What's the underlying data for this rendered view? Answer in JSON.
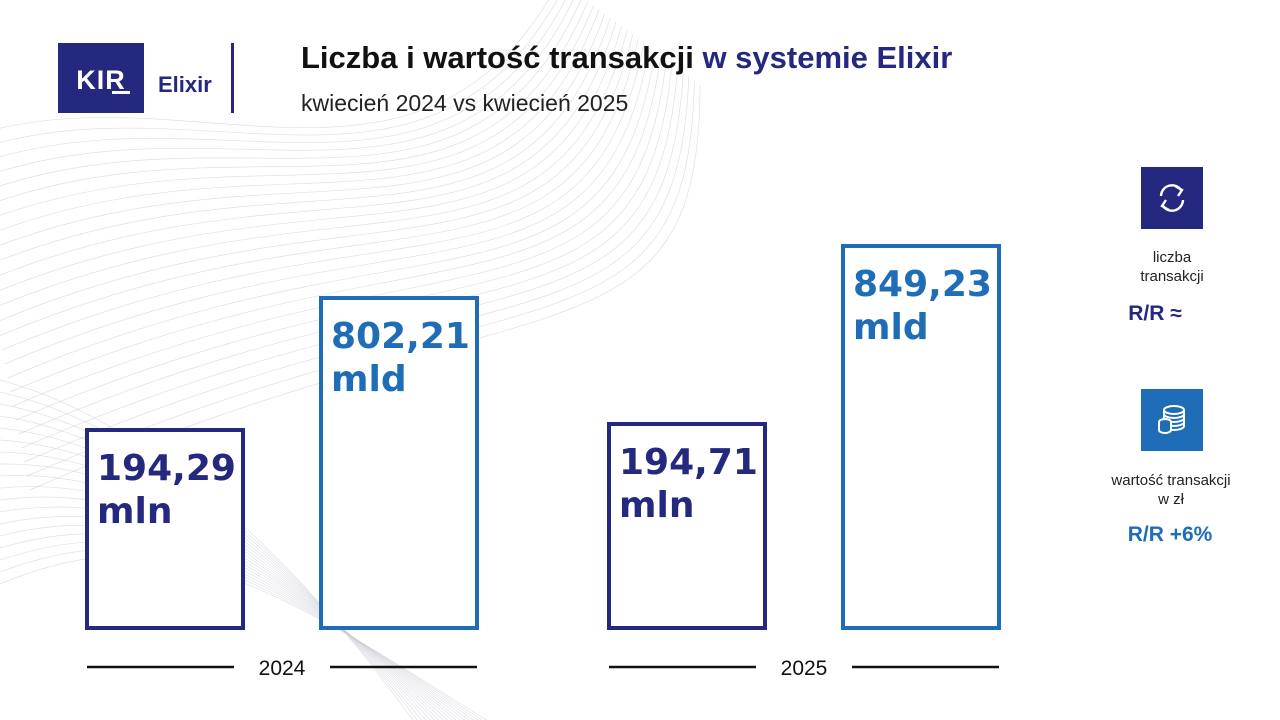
{
  "brand": {
    "logo_text": "KIR",
    "product_name": "Elixir"
  },
  "header": {
    "title_part1": "Liczba i wartość transakcji",
    "title_part2": "w systemie Elixir",
    "subtitle": "kwiecień 2024 vs kwiecień 2025"
  },
  "colors": {
    "navy": "#24287e",
    "blue": "#1e6db6"
  },
  "chart_data": {
    "type": "bar",
    "title": "Liczba i wartość transakcji w systemie Elixir",
    "subtitle": "kwiecień 2024 vs kwiecień 2025",
    "categories": [
      "2024",
      "2025"
    ],
    "series": [
      {
        "name": "liczba transakcji",
        "values": [
          194.29,
          194.71
        ],
        "value_labels": [
          "194,29",
          "194,71"
        ],
        "unit": "mln",
        "color": "#24287e"
      },
      {
        "name": "wartość transakcji w zł",
        "values": [
          802.21,
          849.23
        ],
        "value_labels": [
          "802,21",
          "849,23"
        ],
        "unit": "mld",
        "color": "#1e6db6"
      }
    ],
    "grid": false,
    "legend": "right"
  },
  "legend": {
    "items": [
      {
        "icon": "exchange-arrows-icon",
        "label_line1": "liczba",
        "label_line2": "transakcji",
        "yoy": "R/R ≈",
        "color": "#24287e"
      },
      {
        "icon": "coins-stack-icon",
        "label_line1": "wartość transakcji",
        "label_line2": "w zł",
        "yoy": "R/R +6%",
        "color": "#1e6db6"
      }
    ]
  }
}
